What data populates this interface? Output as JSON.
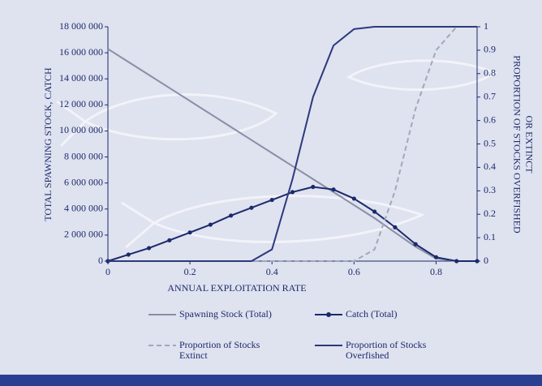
{
  "chart_data": {
    "type": "line",
    "xlabel": "ANNUAL EXPLOITATION RATE",
    "ylabel": "TOTAL SPAWNING STOCK, CATCH",
    "y2label": [
      "PROPORTION OF STOCKS OVERFISHED",
      "OR EXTINCT"
    ],
    "x": [
      0,
      0.05,
      0.1,
      0.15,
      0.2,
      0.25,
      0.3,
      0.35,
      0.4,
      0.45,
      0.5,
      0.55,
      0.6,
      0.65,
      0.7,
      0.75,
      0.8,
      0.85,
      0.9
    ],
    "xlim": [
      0,
      0.9
    ],
    "xticks": [
      0,
      0.2,
      0.4,
      0.6,
      0.8
    ],
    "ylim": [
      0,
      18000000
    ],
    "yticks": [
      0,
      {
        "value": 2000000,
        "label": "2 000 000"
      },
      {
        "value": 4000000,
        "label": "4 000 000"
      },
      {
        "value": 6000000,
        "label": "6 000 000"
      },
      {
        "value": 8000000,
        "label": "8 000 000"
      },
      {
        "value": 10000000,
        "label": "10 000 000"
      },
      {
        "value": 12000000,
        "label": "12 000 000"
      },
      {
        "value": 14000000,
        "label": "14 000 000"
      },
      {
        "value": 16000000,
        "label": "16 000 000"
      },
      {
        "value": 18000000,
        "label": "18 000 000"
      }
    ],
    "y2lim": [
      0,
      1
    ],
    "y2ticks": [
      0,
      0.1,
      0.2,
      0.3,
      0.4,
      0.5,
      0.6,
      0.7,
      0.8,
      0.9,
      1
    ],
    "series": [
      {
        "name": "Spawning Stock (Total)",
        "color": "#8a8ea6",
        "style": "solid",
        "markers": false,
        "values": [
          16300000,
          15300000,
          14300000,
          13300000,
          12300000,
          11300000,
          10300000,
          9300000,
          8300000,
          7300000,
          6300000,
          5300000,
          4300000,
          3300000,
          2200000,
          1100000,
          200000,
          0,
          0
        ]
      },
      {
        "name": "Catch (Total)",
        "color": "#1b2a6b",
        "style": "solid",
        "markers": true,
        "values": [
          0,
          500000,
          1000000,
          1600000,
          2200000,
          2800000,
          3500000,
          4100000,
          4700000,
          5300000,
          5700000,
          5500000,
          4800000,
          3800000,
          2600000,
          1300000,
          300000,
          0,
          0
        ]
      },
      {
        "name": "Proportion of Stocks Extinct",
        "color": "#a3a7bb",
        "style": "dashed",
        "markers": false,
        "axis": "y2",
        "values": [
          0,
          0,
          0,
          0,
          0,
          0,
          0,
          0,
          0,
          0,
          0,
          0,
          0,
          0.05,
          0.3,
          0.65,
          0.9,
          1,
          1
        ]
      },
      {
        "name": "Proportion of Stocks Overfished",
        "color": "#2a3a7c",
        "style": "solid",
        "markers": false,
        "axis": "y2",
        "values": [
          0,
          0,
          0,
          0,
          0,
          0,
          0,
          0,
          0.05,
          0.35,
          0.7,
          0.92,
          0.99,
          1,
          1,
          1,
          1,
          1,
          1
        ]
      }
    ]
  }
}
